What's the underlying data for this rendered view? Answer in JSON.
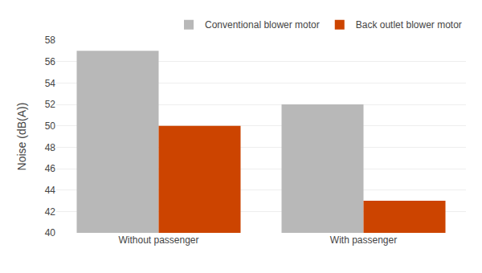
{
  "chart_data": {
    "type": "bar",
    "categories": [
      "Without passenger",
      "With passenger"
    ],
    "series": [
      {
        "name": "Conventional blower motor",
        "color": "#b8b8b8",
        "values": [
          57,
          52
        ]
      },
      {
        "name": "Back outlet blower motor",
        "color": "#cc4400",
        "values": [
          50,
          43
        ]
      }
    ],
    "ylabel": "Noise (dB(A))",
    "ylim": [
      40,
      58
    ],
    "yticks": [
      40,
      42,
      44,
      46,
      48,
      50,
      52,
      54,
      56,
      58
    ],
    "grid": true,
    "legend": "upper right"
  }
}
